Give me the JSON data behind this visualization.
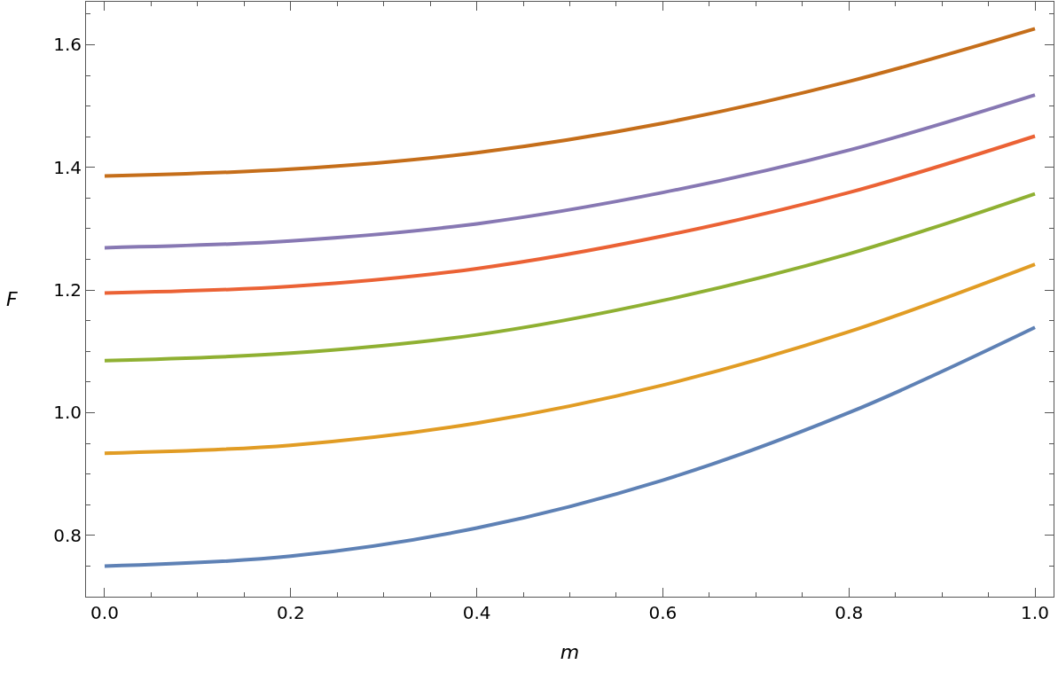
{
  "chart_data": {
    "type": "line",
    "xlabel": "m",
    "ylabel": "F",
    "x": [
      0,
      0.2,
      0.4,
      0.6,
      0.8,
      1.0
    ],
    "series": [
      {
        "color": "#5e81b5",
        "values": [
          0.75,
          0.766,
          0.812,
          0.89,
          1.0,
          1.139
        ]
      },
      {
        "color": "#e19c24",
        "values": [
          0.934,
          0.947,
          0.983,
          1.045,
          1.132,
          1.242
        ]
      },
      {
        "color": "#8fb032",
        "values": [
          1.085,
          1.097,
          1.127,
          1.183,
          1.259,
          1.357
        ]
      },
      {
        "color": "#eb6235",
        "values": [
          1.195,
          1.206,
          1.235,
          1.288,
          1.359,
          1.451
        ]
      },
      {
        "color": "#8778b3",
        "values": [
          1.269,
          1.28,
          1.308,
          1.359,
          1.428,
          1.518
        ]
      },
      {
        "color": "#c56e1a",
        "values": [
          1.386,
          1.397,
          1.424,
          1.472,
          1.54,
          1.626
        ]
      }
    ],
    "xlim": [
      -0.02,
      1.02
    ],
    "ylim": [
      0.7,
      1.67
    ],
    "xticks": [
      {
        "value": 0,
        "label": "0.0"
      },
      0.2,
      0.4,
      0.6,
      0.8,
      {
        "value": 1,
        "label": "1.0"
      }
    ],
    "yticks": [
      0.8,
      {
        "value": 1,
        "label": "1.0"
      },
      1.2,
      1.4,
      1.6
    ],
    "marker": "none",
    "line_style": "solid"
  }
}
